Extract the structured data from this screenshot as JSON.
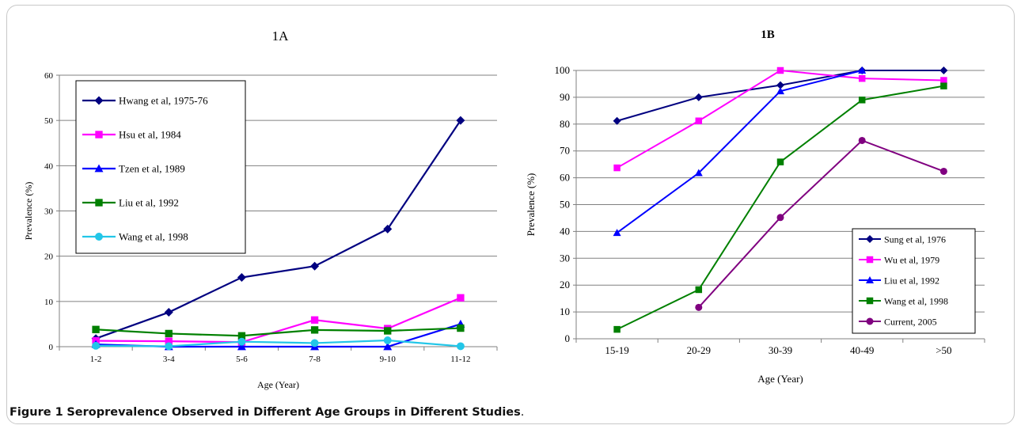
{
  "caption": {
    "figure_label": "Figure 1",
    "text": "Seroprevalence Observed in Different Age Groups in Different Studies",
    "end": "."
  },
  "chart_data": [
    {
      "id": "1A",
      "type": "line",
      "title": "1A",
      "xlabel": "Age (Year)",
      "ylabel": "Prevalence (%)",
      "categories": [
        "1-2",
        "3-4",
        "5-6",
        "7-8",
        "9-10",
        "11-12"
      ],
      "ylim": [
        0,
        60
      ],
      "yticks": [
        0,
        10,
        20,
        30,
        40,
        50,
        60
      ],
      "grid": true,
      "legend_position": "top-left",
      "series": [
        {
          "name": "Hwang et al, 1975-76",
          "color": "#000080",
          "marker": "diamond",
          "values": [
            1.8,
            7.6,
            15.3,
            17.8,
            26,
            50
          ]
        },
        {
          "name": "Hsu et al, 1984",
          "color": "#ff00ff",
          "marker": "square",
          "values": [
            1.3,
            1.2,
            1,
            5.9,
            4,
            10.8
          ]
        },
        {
          "name": "Tzen et al, 1989",
          "color": "#0000ff",
          "marker": "triangle",
          "values": [
            0.5,
            0,
            0,
            0,
            0,
            5
          ]
        },
        {
          "name": "Liu et al, 1992",
          "color": "#008000",
          "marker": "square",
          "values": [
            3.8,
            2.9,
            2.4,
            3.7,
            3.5,
            4.1
          ]
        },
        {
          "name": "Wang et al, 1998",
          "color": "#22c6e8",
          "marker": "circle",
          "values": [
            0.2,
            0.1,
            1.1,
            0.8,
            1.4,
            0.1
          ]
        }
      ]
    },
    {
      "id": "1B",
      "type": "line",
      "title": "1B",
      "xlabel": "Age (Year)",
      "ylabel": "Prevalence (%)",
      "categories": [
        "15-19",
        "20-29",
        "30-39",
        "40-49",
        ">50"
      ],
      "ylim": [
        0,
        100
      ],
      "yticks": [
        0,
        10,
        20,
        30,
        40,
        50,
        60,
        70,
        80,
        90,
        100
      ],
      "grid": true,
      "legend_position": "bottom-right",
      "series": [
        {
          "name": "Sung et al, 1976",
          "color": "#000080",
          "marker": "diamond",
          "values": [
            81.2,
            90,
            94.5,
            100,
            100
          ]
        },
        {
          "name": "Wu et al, 1979",
          "color": "#ff00ff",
          "marker": "square",
          "values": [
            63.7,
            81.2,
            100,
            97,
            96.3
          ]
        },
        {
          "name": "Liu et al, 1992",
          "color": "#0000ff",
          "marker": "triangle",
          "values": [
            39.5,
            61.8,
            92.3,
            100,
            null
          ]
        },
        {
          "name": "Wang et al, 1998",
          "color": "#008000",
          "marker": "square",
          "values": [
            3.5,
            18.3,
            65.9,
            89,
            94.2
          ]
        },
        {
          "name": "Current, 2005",
          "color": "#800080",
          "marker": "circle",
          "values": [
            null,
            11.7,
            45.2,
            73.9,
            62.4
          ]
        }
      ]
    }
  ]
}
